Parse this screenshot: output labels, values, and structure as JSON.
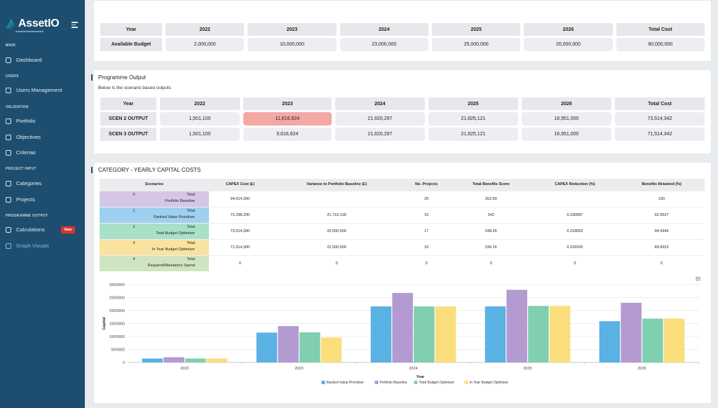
{
  "app": {
    "name": "AssetIO"
  },
  "sidebar": {
    "sections": [
      {
        "label": "MAIN",
        "items": [
          {
            "label": "Dashboard"
          }
        ]
      },
      {
        "label": "USERS",
        "items": [
          {
            "label": "Users Management"
          }
        ]
      },
      {
        "label": "VALIDATION",
        "items": [
          {
            "label": "Portfolio"
          },
          {
            "label": "Objectives"
          },
          {
            "label": "Criterias"
          }
        ]
      },
      {
        "label": "PROJECT INPUT",
        "items": [
          {
            "label": "Categories"
          },
          {
            "label": "Projects"
          }
        ]
      },
      {
        "label": "PROGRAMME OUTPUT",
        "items": [
          {
            "label": "Calculations",
            "badge": "New"
          },
          {
            "label": "Graph Visuals",
            "active": true
          }
        ]
      }
    ],
    "active_color": "#6cc4e8",
    "bg_color": "#1d4e6f"
  },
  "budget": {
    "headers": [
      "Year",
      "2022",
      "2023",
      "2024",
      "2025",
      "2026",
      "Total Cost"
    ],
    "row_label": "Available Budget",
    "values": [
      "2,000,000",
      "10,000,000",
      "23,000,000",
      "25,000,000",
      "20,000,000",
      "80,000,000"
    ]
  },
  "programme_output": {
    "title": "Programme Output",
    "subtitle": "Below is the scenario based outputs",
    "headers": [
      "Year",
      "2022",
      "2023",
      "2024",
      "2025",
      "2026",
      "Total Cost"
    ],
    "rows": [
      {
        "label": "SCEN 2 OUTPUT",
        "values": [
          "1,501,100",
          "11,616,824",
          "21,620,297",
          "21,825,121",
          "16,951,000",
          "73,514,342"
        ],
        "highlight_index": 1
      },
      {
        "label": "SCEN 3 OUTPUT",
        "values": [
          "1,501,100",
          "9,616,824",
          "21,620,297",
          "21,825,121",
          "16,951,000",
          "71,514,342"
        ]
      }
    ],
    "highlight_color": "#f4a7a3"
  },
  "category": {
    "title": "CATEGORY - YEARLY CAPITAL COSTS",
    "headers": [
      "Scenarios",
      "CAPEX Cost (£)",
      "Variance to Portfolio Baseline (£)",
      "No. Projects",
      "Total Benefits Score",
      "CAPEX Reduction (%)",
      "Benefits Retained (%)"
    ],
    "rows": [
      {
        "num": "0",
        "kind": "Total",
        "name": "Portfolio Baseline",
        "color": "#d6c6e6",
        "values": [
          "94,014,300",
          "",
          "20",
          "262.89",
          "",
          "100"
        ]
      },
      {
        "num": "1",
        "kind": "Total",
        "name": "Ranked Value Prioritiser",
        "color": "#9fd0f0",
        "values": [
          "72,298,200",
          "21,716,100",
          "15",
          "242",
          "0.230987",
          "92.0537"
        ]
      },
      {
        "num": "2",
        "kind": "Total",
        "name": "Total Budget Optimiser",
        "color": "#a9e0c8",
        "values": [
          "73,514,300",
          "20,500,000",
          "17",
          "248.26",
          "0.218052",
          "94.4349"
        ]
      },
      {
        "num": "3",
        "kind": "Total",
        "name": "In Year Budget Optimiser",
        "color": "#fae3a0",
        "values": [
          "71,514,300",
          "22,500,000",
          "16",
          "236.16",
          "0.239325",
          "89.8323"
        ]
      },
      {
        "num": "4",
        "kind": "Total",
        "name": "Required/Mandatory Spend",
        "color": "#cfe5c2",
        "values": [
          "0",
          "0",
          "0",
          "0",
          "0",
          "0"
        ]
      }
    ]
  },
  "chart_data": {
    "type": "bar",
    "categories": [
      "2022",
      "2023",
      "2024",
      "2025",
      "2026"
    ],
    "series": [
      {
        "name": "Ranked Value Prioritiser",
        "color": "#5ab1e4",
        "values": [
          1500000,
          11500000,
          21600000,
          21600000,
          15900000
        ]
      },
      {
        "name": "Portfolio Baseline",
        "color": "#b39ad1",
        "values": [
          2000000,
          14000000,
          26800000,
          28000000,
          23000000
        ]
      },
      {
        "name": "Total Budget Optimiser",
        "color": "#7fcfb0",
        "values": [
          1500000,
          11600000,
          21600000,
          21800000,
          16900000
        ]
      },
      {
        "name": "In Year Budget Optimiser",
        "color": "#fbde7c",
        "values": [
          1500000,
          9600000,
          21600000,
          21800000,
          16900000
        ]
      }
    ],
    "xlabel": "Year",
    "ylabel": "Capital",
    "ylim": [
      0,
      30000000
    ],
    "yticks": [
      "0",
      "5000000",
      "10000000",
      "15000000",
      "20000000",
      "25000000",
      "30000000"
    ],
    "grid": true,
    "legend": "bottom"
  }
}
